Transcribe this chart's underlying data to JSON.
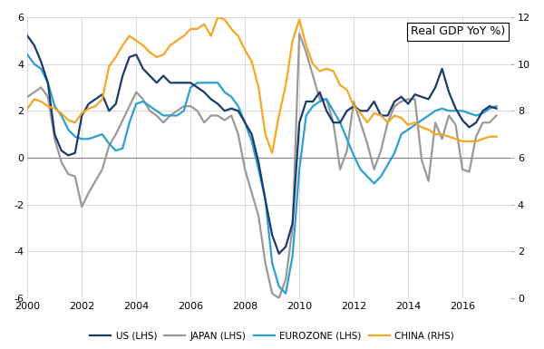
{
  "title": "Real GDP YoY %)",
  "xlim": [
    2000,
    2017.75
  ],
  "ylim_left": [
    -6,
    6
  ],
  "ylim_right": [
    0,
    12
  ],
  "yticks_left": [
    -6,
    -4,
    -2,
    0,
    2,
    4,
    6
  ],
  "yticks_right": [
    0,
    2,
    4,
    6,
    8,
    10,
    12
  ],
  "xticks": [
    2000,
    2002,
    2004,
    2006,
    2008,
    2010,
    2012,
    2014,
    2016
  ],
  "us_color": "#1a3a6b",
  "japan_color": "#999999",
  "eurozone_color": "#2b9fd4",
  "china_color": "#f5a623",
  "us_label": "US (LHS)",
  "japan_label": "JAPAN (LHS)",
  "eurozone_label": "EUROZONE (LHS)",
  "china_label": "CHINA (RHS)",
  "us": {
    "x": [
      2000.0,
      2000.25,
      2000.5,
      2000.75,
      2001.0,
      2001.25,
      2001.5,
      2001.75,
      2002.0,
      2002.25,
      2002.5,
      2002.75,
      2003.0,
      2003.25,
      2003.5,
      2003.75,
      2004.0,
      2004.25,
      2004.5,
      2004.75,
      2005.0,
      2005.25,
      2005.5,
      2005.75,
      2006.0,
      2006.25,
      2006.5,
      2006.75,
      2007.0,
      2007.25,
      2007.5,
      2007.75,
      2008.0,
      2008.25,
      2008.5,
      2008.75,
      2009.0,
      2009.25,
      2009.5,
      2009.75,
      2010.0,
      2010.25,
      2010.5,
      2010.75,
      2011.0,
      2011.25,
      2011.5,
      2011.75,
      2012.0,
      2012.25,
      2012.5,
      2012.75,
      2013.0,
      2013.25,
      2013.5,
      2013.75,
      2014.0,
      2014.25,
      2014.5,
      2014.75,
      2015.0,
      2015.25,
      2015.5,
      2015.75,
      2016.0,
      2016.25,
      2016.5,
      2016.75,
      2017.0,
      2017.25
    ],
    "y": [
      5.2,
      4.8,
      4.1,
      3.2,
      1.0,
      0.3,
      0.1,
      0.2,
      1.8,
      2.3,
      2.5,
      2.7,
      2.0,
      2.3,
      3.5,
      4.3,
      4.4,
      3.8,
      3.5,
      3.2,
      3.5,
      3.2,
      3.2,
      3.2,
      3.2,
      3.0,
      2.8,
      2.5,
      2.3,
      2.0,
      2.1,
      2.0,
      1.5,
      1.0,
      -0.2,
      -1.8,
      -3.3,
      -4.1,
      -3.8,
      -2.8,
      1.5,
      2.4,
      2.4,
      2.8,
      2.0,
      1.5,
      1.5,
      2.0,
      2.2,
      2.0,
      2.0,
      2.4,
      1.8,
      1.8,
      2.4,
      2.6,
      2.3,
      2.7,
      2.6,
      2.5,
      3.0,
      3.8,
      2.8,
      2.1,
      1.6,
      1.3,
      1.5,
      2.0,
      2.2,
      2.1
    ]
  },
  "japan": {
    "x": [
      2000.0,
      2000.25,
      2000.5,
      2000.75,
      2001.0,
      2001.25,
      2001.5,
      2001.75,
      2002.0,
      2002.25,
      2002.5,
      2002.75,
      2003.0,
      2003.25,
      2003.5,
      2003.75,
      2004.0,
      2004.25,
      2004.5,
      2004.75,
      2005.0,
      2005.25,
      2005.5,
      2005.75,
      2006.0,
      2006.25,
      2006.5,
      2006.75,
      2007.0,
      2007.25,
      2007.5,
      2007.75,
      2008.0,
      2008.25,
      2008.5,
      2008.75,
      2009.0,
      2009.25,
      2009.5,
      2009.75,
      2010.0,
      2010.25,
      2010.5,
      2010.75,
      2011.0,
      2011.25,
      2011.5,
      2011.75,
      2012.0,
      2012.25,
      2012.5,
      2012.75,
      2013.0,
      2013.25,
      2013.5,
      2013.75,
      2014.0,
      2014.25,
      2014.5,
      2014.75,
      2015.0,
      2015.25,
      2015.5,
      2015.75,
      2016.0,
      2016.25,
      2016.5,
      2016.75,
      2017.0,
      2017.25
    ],
    "y": [
      2.6,
      2.8,
      3.0,
      2.6,
      0.8,
      -0.2,
      -0.7,
      -0.8,
      -2.1,
      -1.5,
      -1.0,
      -0.5,
      0.5,
      1.0,
      1.6,
      2.2,
      2.8,
      2.5,
      2.0,
      1.8,
      1.5,
      1.8,
      2.0,
      2.2,
      2.2,
      2.0,
      1.5,
      1.8,
      1.8,
      1.6,
      1.8,
      1.0,
      -0.5,
      -1.5,
      -2.5,
      -4.5,
      -5.8,
      -6.0,
      -5.2,
      -3.0,
      5.3,
      4.5,
      3.5,
      2.5,
      2.5,
      1.5,
      -0.5,
      0.3,
      2.4,
      1.5,
      0.6,
      -0.5,
      0.3,
      1.5,
      2.2,
      2.4,
      2.5,
      2.5,
      -0.1,
      -1.0,
      1.5,
      0.8,
      1.8,
      1.4,
      -0.5,
      -0.6,
      0.9,
      1.5,
      1.5,
      1.8
    ]
  },
  "eurozone": {
    "x": [
      2000.0,
      2000.25,
      2000.5,
      2000.75,
      2001.0,
      2001.25,
      2001.5,
      2001.75,
      2002.0,
      2002.25,
      2002.5,
      2002.75,
      2003.0,
      2003.25,
      2003.5,
      2003.75,
      2004.0,
      2004.25,
      2004.5,
      2004.75,
      2005.0,
      2005.25,
      2005.5,
      2005.75,
      2006.0,
      2006.25,
      2006.5,
      2006.75,
      2007.0,
      2007.25,
      2007.5,
      2007.75,
      2008.0,
      2008.25,
      2008.5,
      2008.75,
      2009.0,
      2009.25,
      2009.5,
      2009.75,
      2010.0,
      2010.25,
      2010.5,
      2010.75,
      2011.0,
      2011.25,
      2011.5,
      2011.75,
      2012.0,
      2012.25,
      2012.5,
      2012.75,
      2013.0,
      2013.25,
      2013.5,
      2013.75,
      2014.0,
      2014.25,
      2014.5,
      2014.75,
      2015.0,
      2015.25,
      2015.5,
      2015.75,
      2016.0,
      2016.25,
      2016.5,
      2016.75,
      2017.0,
      2017.25
    ],
    "y": [
      4.4,
      4.0,
      3.8,
      3.2,
      2.2,
      1.8,
      1.2,
      0.9,
      0.8,
      0.8,
      0.9,
      1.0,
      0.6,
      0.3,
      0.4,
      1.5,
      2.3,
      2.4,
      2.2,
      2.0,
      1.8,
      1.8,
      1.8,
      2.0,
      3.0,
      3.2,
      3.2,
      3.2,
      3.2,
      2.8,
      2.6,
      2.2,
      1.5,
      0.7,
      -0.5,
      -1.8,
      -4.5,
      -5.5,
      -5.8,
      -4.2,
      -0.5,
      1.8,
      2.2,
      2.4,
      2.5,
      2.0,
      1.5,
      0.8,
      0.1,
      -0.5,
      -0.8,
      -1.1,
      -0.8,
      -0.3,
      0.2,
      1.0,
      1.2,
      1.4,
      1.6,
      1.8,
      2.0,
      2.1,
      2.0,
      2.0,
      2.0,
      1.9,
      1.8,
      1.9,
      2.1,
      2.2
    ]
  },
  "china": {
    "x": [
      2000.0,
      2000.25,
      2000.5,
      2000.75,
      2001.0,
      2001.25,
      2001.5,
      2001.75,
      2002.0,
      2002.25,
      2002.5,
      2002.75,
      2003.0,
      2003.25,
      2003.5,
      2003.75,
      2004.0,
      2004.25,
      2004.5,
      2004.75,
      2005.0,
      2005.25,
      2005.5,
      2005.75,
      2006.0,
      2006.25,
      2006.5,
      2006.75,
      2007.0,
      2007.25,
      2007.5,
      2007.75,
      2008.0,
      2008.25,
      2008.5,
      2008.75,
      2009.0,
      2009.25,
      2009.5,
      2009.75,
      2010.0,
      2010.25,
      2010.5,
      2010.75,
      2011.0,
      2011.25,
      2011.5,
      2011.75,
      2012.0,
      2012.25,
      2012.5,
      2012.75,
      2013.0,
      2013.25,
      2013.5,
      2013.75,
      2014.0,
      2014.25,
      2014.5,
      2014.75,
      2015.0,
      2015.25,
      2015.5,
      2015.75,
      2016.0,
      2016.25,
      2016.5,
      2016.75,
      2017.0,
      2017.25
    ],
    "y": [
      8.1,
      8.5,
      8.4,
      8.2,
      8.1,
      7.9,
      7.6,
      7.5,
      7.9,
      8.1,
      8.2,
      8.5,
      9.9,
      10.3,
      10.8,
      11.2,
      11.0,
      10.8,
      10.5,
      10.3,
      10.4,
      10.8,
      11.0,
      11.2,
      11.5,
      11.5,
      11.7,
      11.2,
      12.0,
      11.9,
      11.5,
      11.2,
      10.6,
      10.1,
      9.0,
      7.0,
      6.2,
      7.8,
      9.1,
      11.0,
      11.9,
      10.8,
      10.0,
      9.7,
      9.8,
      9.7,
      9.1,
      8.9,
      8.2,
      7.9,
      7.5,
      7.9,
      7.8,
      7.5,
      7.8,
      7.7,
      7.4,
      7.5,
      7.3,
      7.2,
      7.0,
      7.0,
      6.9,
      6.8,
      6.7,
      6.7,
      6.7,
      6.8,
      6.9,
      6.9
    ]
  },
  "background_color": "#ffffff",
  "grid_color": "#cccccc",
  "linewidth": 1.6,
  "tick_fontsize": 8,
  "title_fontsize": 9,
  "legend_fontsize": 7.5
}
